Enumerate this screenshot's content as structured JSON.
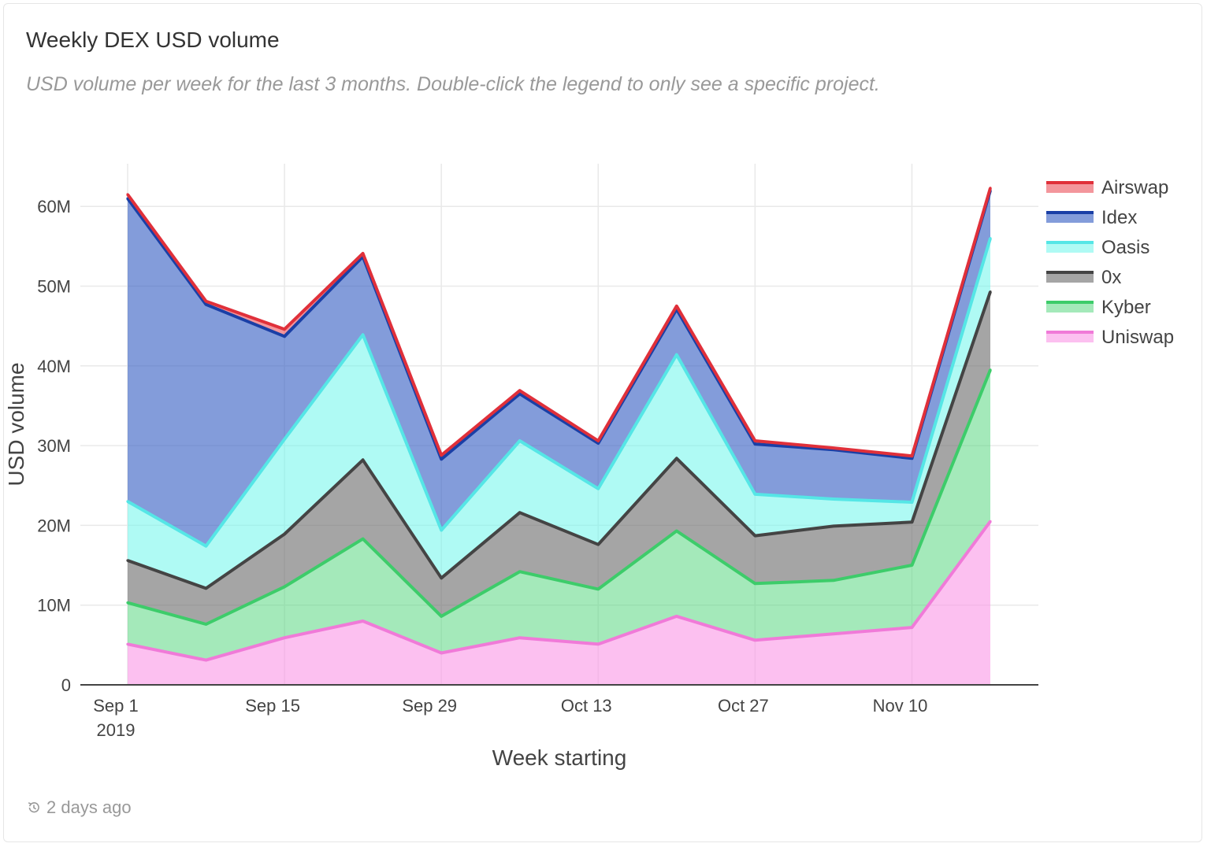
{
  "card": {
    "title": "Weekly DEX USD volume",
    "subtitle": "USD volume per week for the last 3 months. Double-click the legend to only see a specific project.",
    "footer_text": "2 days ago",
    "footer_icon": "history-icon"
  },
  "chart_data": {
    "type": "area",
    "stacked": true,
    "xlabel": "Week starting",
    "ylabel": "USD volume",
    "ylim": [
      0,
      65000000
    ],
    "yticks": [
      0,
      10000000,
      20000000,
      30000000,
      40000000,
      50000000,
      60000000
    ],
    "ytick_labels": [
      "0",
      "10M",
      "20M",
      "30M",
      "40M",
      "50M",
      "60M"
    ],
    "x": [
      "2019-09-01",
      "2019-09-08",
      "2019-09-15",
      "2019-09-22",
      "2019-09-29",
      "2019-10-06",
      "2019-10-13",
      "2019-10-20",
      "2019-10-27",
      "2019-11-03",
      "2019-11-10",
      "2019-11-17"
    ],
    "xticks": [
      {
        "date": "2019-09-01",
        "label": "Sep 1",
        "sublabel": "2019"
      },
      {
        "date": "2019-09-15",
        "label": "Sep 15",
        "sublabel": ""
      },
      {
        "date": "2019-09-29",
        "label": "Sep 29",
        "sublabel": ""
      },
      {
        "date": "2019-10-13",
        "label": "Oct 13",
        "sublabel": ""
      },
      {
        "date": "2019-10-27",
        "label": "Oct 27",
        "sublabel": ""
      },
      {
        "date": "2019-11-10",
        "label": "Nov 10",
        "sublabel": ""
      }
    ],
    "grid": true,
    "legend_position": "top-right",
    "series": [
      {
        "name": "Uniswap",
        "line_color": "#f07ad8",
        "fill_color": "rgba(250,150,230,0.6)",
        "values": [
          5100000,
          3100000,
          5900000,
          8000000,
          4000000,
          5900000,
          5100000,
          8600000,
          5600000,
          6400000,
          7200000,
          20500000
        ]
      },
      {
        "name": "Kyber",
        "line_color": "#3dcc6a",
        "fill_color": "rgba(90,215,130,0.55)",
        "values": [
          5200000,
          4500000,
          6400000,
          10300000,
          4600000,
          8300000,
          6900000,
          10700000,
          7100000,
          6700000,
          7800000,
          19000000
        ]
      },
      {
        "name": "0x",
        "line_color": "#444444",
        "fill_color": "rgba(110,110,110,0.62)",
        "values": [
          5300000,
          4500000,
          6600000,
          9900000,
          4800000,
          7400000,
          5600000,
          9100000,
          6000000,
          6800000,
          5400000,
          9800000
        ]
      },
      {
        "name": "Oasis",
        "line_color": "#55e6e6",
        "fill_color": "rgba(110,245,235,0.55)",
        "values": [
          7400000,
          5300000,
          11900000,
          15700000,
          6000000,
          9000000,
          7000000,
          13000000,
          5200000,
          3400000,
          2500000,
          6700000
        ]
      },
      {
        "name": "Idex",
        "line_color": "#1a3fa6",
        "fill_color": "rgba(55,95,195,0.62)",
        "values": [
          38000000,
          30300000,
          12900000,
          9800000,
          8900000,
          5900000,
          5700000,
          5700000,
          6300000,
          6200000,
          5500000,
          6000000
        ]
      },
      {
        "name": "Airswap",
        "line_color": "#e0303a",
        "fill_color": "rgba(235,80,90,0.6)",
        "values": [
          500000,
          400000,
          900000,
          400000,
          500000,
          400000,
          300000,
          400000,
          400000,
          200000,
          300000,
          300000
        ]
      }
    ],
    "legend_order": [
      "Airswap",
      "Idex",
      "Oasis",
      "0x",
      "Kyber",
      "Uniswap"
    ]
  }
}
